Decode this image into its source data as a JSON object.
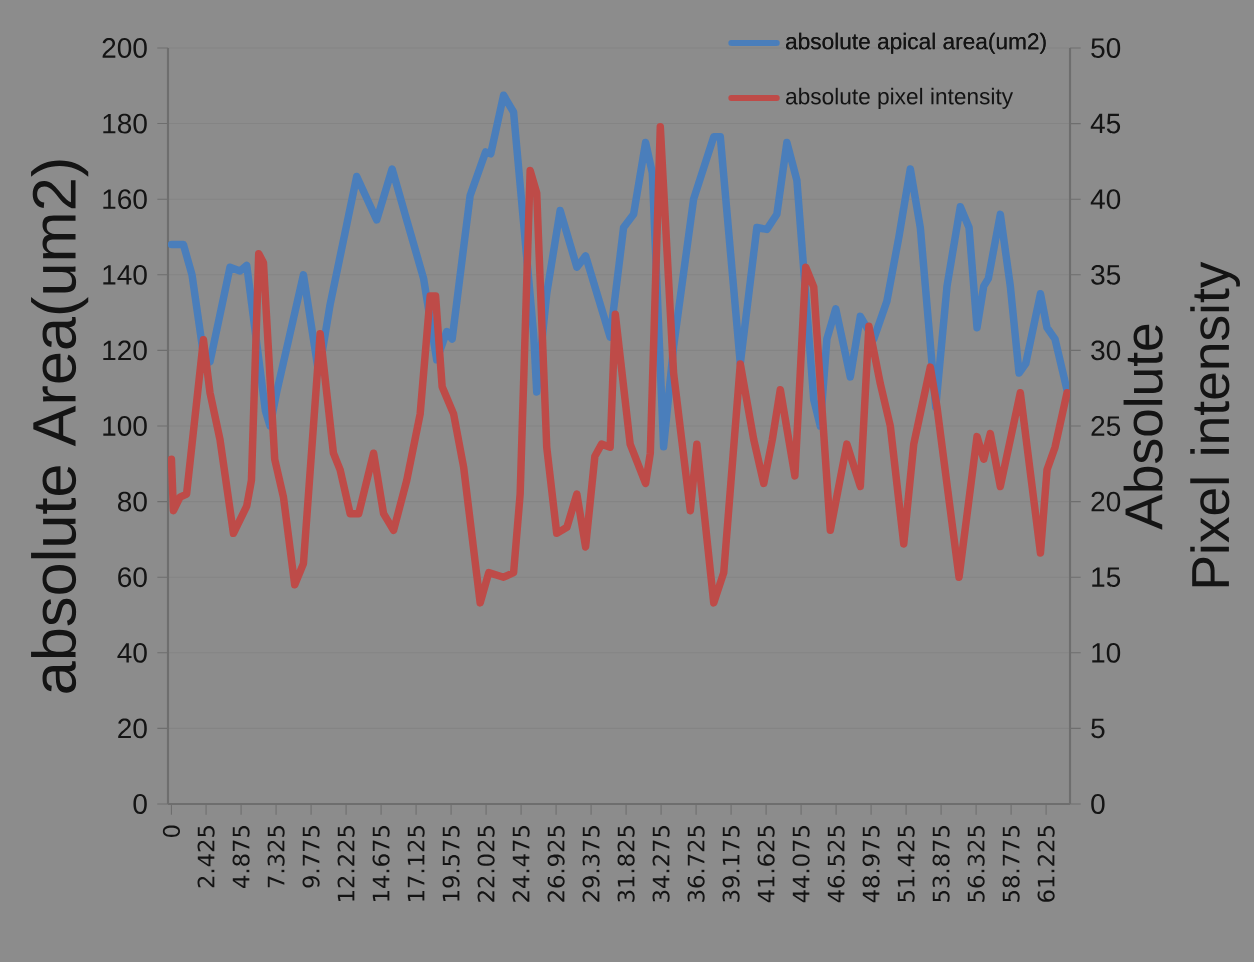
{
  "chart_data": {
    "type": "line",
    "ylabel": "absolute Area(um2)",
    "y2label": "Absolute Pixel intensity",
    "xlim": [
      -0.24,
      62.9
    ],
    "xticks": [
      0,
      2.425,
      4.875,
      7.325,
      9.775,
      12.225,
      14.675,
      17.125,
      19.575,
      22.025,
      24.475,
      26.925,
      29.375,
      31.825,
      34.275,
      36.725,
      39.175,
      41.625,
      44.075,
      46.525,
      48.975,
      51.425,
      53.875,
      56.325,
      58.775,
      61.225
    ],
    "ylim": [
      0,
      200
    ],
    "yticks": [
      0,
      20,
      40,
      60,
      80,
      100,
      120,
      140,
      160,
      180,
      200
    ],
    "y2lim": [
      0,
      50
    ],
    "y2ticks": [
      0,
      5,
      10,
      15,
      20,
      25,
      30,
      35,
      40,
      45,
      50
    ],
    "grid": "y",
    "legend": "top right",
    "series": [
      {
        "name": "absolute apical area(um2)",
        "color": "#4a7ebb",
        "x": [
          0,
          0.84,
          1.44,
          2.24,
          2.7,
          4.1,
          4.8,
          5.27,
          6.58,
          6.9,
          7.37,
          9.24,
          10.31,
          11.1,
          12.97,
          14.37,
          15.45,
          16.47,
          17.65,
          18.57,
          19.27,
          19.65,
          20.91,
          21.99,
          22.35,
          23.25,
          23.95,
          25.35,
          25.57,
          26.27,
          27.21,
          28.38,
          28.99,
          30.71,
          31.65,
          32.35,
          33.19,
          33.66,
          34.45,
          35.15,
          36.55,
          37.96,
          38.42,
          39.82,
          40.98,
          41.68,
          42.38,
          43.08,
          43.78,
          44.96,
          45.42,
          45.88,
          46.5,
          47.52,
          48.22,
          49.16,
          50.08,
          50.92,
          51.72,
          52.42,
          53.5,
          54.29,
          55.22,
          55.83,
          56.39,
          56.86,
          57.18,
          58.02,
          58.72,
          59.33,
          59.8,
          60.83,
          61.29,
          61.85,
          62.69
        ],
        "values": [
          148,
          148,
          140,
          119,
          117,
          142,
          141,
          142.5,
          104,
          100,
          109,
          140,
          114,
          132,
          166,
          154.5,
          168,
          154.5,
          139,
          117.5,
          125,
          123,
          161,
          172.5,
          172,
          187.5,
          183,
          124.5,
          109,
          135,
          157,
          142,
          145,
          123.5,
          152.5,
          156,
          175,
          167,
          94.5,
          121,
          160,
          176.5,
          176.5,
          116.5,
          152.5,
          152,
          156,
          175,
          165,
          107,
          100,
          123,
          131,
          113,
          129,
          123,
          133,
          150,
          168,
          152.5,
          105,
          137,
          158,
          152.5,
          126,
          137,
          139,
          156,
          137,
          114,
          116.5,
          135,
          126,
          123,
          109.5
        ]
      },
      {
        "name": "absolute pixel intensity",
        "color": "#be4b48",
        "axis": "y2",
        "x": [
          0,
          0.14,
          0.6,
          1.06,
          2.24,
          2.7,
          3.4,
          4.34,
          5.27,
          5.6,
          6.11,
          6.44,
          7.23,
          7.84,
          8.63,
          9.24,
          10.41,
          11.34,
          11.81,
          12.51,
          13.11,
          14.15,
          14.85,
          15.55,
          16.47,
          17.41,
          18.11,
          18.49,
          18.95,
          19.75,
          20.45,
          21.61,
          22.21,
          23.25,
          23.95,
          24.41,
          25.11,
          25.57,
          26.27,
          26.97,
          27.68,
          28.38,
          28.99,
          29.64,
          30.11,
          30.71,
          31.07,
          32.11,
          33.19,
          33.52,
          34.22,
          35.15,
          36.32,
          36.78,
          37.96,
          38.66,
          39.82,
          40.76,
          41.46,
          42.06,
          42.62,
          43.64,
          44.4,
          44.96,
          46.12,
          47.28,
          48.22,
          48.82,
          49.62,
          50.32,
          51.26,
          51.96,
          53.12,
          53.58,
          55.13,
          56.39,
          56.86,
          57.32,
          58.02,
          59.42,
          60.83,
          61.29,
          61.85,
          62.69
        ],
        "values": [
          22.8,
          19.4,
          20.3,
          20.5,
          30.7,
          27.2,
          24.1,
          17.9,
          19.7,
          21.4,
          36.4,
          35.8,
          22.8,
          20.3,
          14.5,
          15.9,
          31.1,
          23.2,
          22.1,
          19.2,
          19.2,
          23.2,
          19.2,
          18.1,
          21.4,
          25.8,
          33.6,
          33.6,
          27.6,
          25.8,
          22.3,
          13.3,
          15.3,
          15,
          15.3,
          20.5,
          41.9,
          40.4,
          23.6,
          17.9,
          18.3,
          20.5,
          17,
          23,
          23.8,
          23.6,
          32.4,
          23.8,
          21.2,
          23.2,
          44.8,
          28.5,
          19.4,
          23.8,
          13.3,
          15.3,
          29.1,
          24.1,
          21.2,
          24.1,
          27.4,
          21.7,
          35.5,
          34.2,
          18.1,
          23.8,
          21,
          31.6,
          27.8,
          25,
          17.2,
          23.8,
          28.9,
          26.3,
          15,
          24.3,
          22.8,
          24.5,
          21,
          27.2,
          16.6,
          22.1,
          23.6,
          27.2
        ]
      }
    ]
  }
}
